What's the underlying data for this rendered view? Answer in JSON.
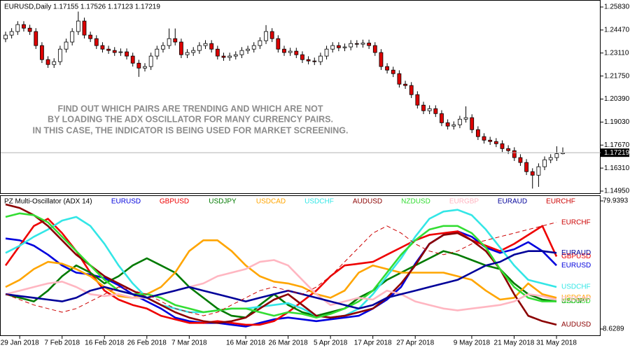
{
  "chart_data": [
    {
      "type": "candlestick",
      "title": "EURUSD,Daily  1.17155 1.17526 1.17123 1.17219",
      "annotation": [
        "FIND OUT WHICH PAIRS ARE TRENDING AND WHICH ARE NOT",
        "BY LOADING THE ADX OSCILLATOR FOR MANY CURRENCY PAIRS.",
        "IN THIS CASE, THE INDICATOR IS BEING USED FOR MARKET SCREENING."
      ],
      "open": [
        1.2395,
        1.2417,
        1.2438,
        1.2479,
        1.2458,
        1.2438,
        1.2355,
        1.2272,
        1.2243,
        1.226,
        1.2334,
        1.2376,
        1.2438,
        1.25,
        1.2417,
        1.2396,
        1.2355,
        1.2334,
        1.2326,
        1.2314,
        1.2318,
        1.2293,
        1.2251,
        1.2222,
        1.2231,
        1.2293,
        1.2334,
        1.2355,
        1.2396,
        1.2376,
        1.2301,
        1.2314,
        1.2326,
        1.2355,
        1.2367,
        1.2334,
        1.2293,
        1.2285,
        1.2293,
        1.2301,
        1.2326,
        1.2334,
        1.2355,
        1.2384,
        1.2438,
        1.2396,
        1.2334,
        1.2314,
        1.2322,
        1.2301,
        1.2272,
        1.2264,
        1.226,
        1.2293,
        1.2334,
        1.2355,
        1.2342,
        1.2347,
        1.2367,
        1.2363,
        1.237,
        1.2355,
        1.2314,
        1.2231,
        1.221,
        1.2189,
        1.2127,
        1.2119,
        1.2065,
        1.2003,
        1.197,
        1.1982,
        1.1953,
        1.1899,
        1.1879,
        1.1887,
        1.192,
        1.1929,
        1.1858,
        1.1817,
        1.1796,
        1.1788,
        1.1775,
        1.1746,
        1.1734,
        1.1693,
        1.1664,
        1.161,
        1.1589,
        1.1639,
        1.168,
        1.1693,
        1.1716
      ],
      "high": [
        1.2437,
        1.2458,
        1.2499,
        1.2499,
        1.2478,
        1.2458,
        1.2375,
        1.2292,
        1.228,
        1.2354,
        1.2396,
        1.2458,
        1.2556,
        1.252,
        1.2437,
        1.2416,
        1.2375,
        1.2354,
        1.2346,
        1.2338,
        1.2338,
        1.2313,
        1.2271,
        1.2251,
        1.2313,
        1.2354,
        1.2375,
        1.2456,
        1.2456,
        1.2396,
        1.2334,
        1.2346,
        1.2375,
        1.2387,
        1.2387,
        1.2354,
        1.2313,
        1.2313,
        1.2321,
        1.2346,
        1.2354,
        1.2375,
        1.2404,
        1.2476,
        1.2458,
        1.2416,
        1.2354,
        1.2342,
        1.2342,
        1.2321,
        1.2292,
        1.2284,
        1.2313,
        1.2354,
        1.2375,
        1.2375,
        1.2367,
        1.2387,
        1.2387,
        1.239,
        1.239,
        1.2375,
        1.2334,
        1.2251,
        1.223,
        1.2209,
        1.2147,
        1.2139,
        1.2085,
        1.2023,
        1.2002,
        1.2002,
        1.1973,
        1.1919,
        1.1907,
        1.194,
        1.1996,
        1.1949,
        1.1878,
        1.1837,
        1.1816,
        1.1808,
        1.1795,
        1.1766,
        1.1754,
        1.1713,
        1.1684,
        1.163,
        1.1659,
        1.17,
        1.1713,
        1.176,
        1.1753
      ],
      "low": [
        1.2375,
        1.2397,
        1.2418,
        1.2438,
        1.2418,
        1.2335,
        1.2252,
        1.2223,
        1.2223,
        1.224,
        1.2314,
        1.2356,
        1.2418,
        1.2397,
        1.2376,
        1.2335,
        1.2314,
        1.2306,
        1.2294,
        1.2294,
        1.2273,
        1.2231,
        1.217,
        1.2202,
        1.2211,
        1.2273,
        1.2314,
        1.2335,
        1.2356,
        1.2281,
        1.2281,
        1.2294,
        1.2306,
        1.2335,
        1.2314,
        1.2273,
        1.2265,
        1.2265,
        1.2273,
        1.2281,
        1.2306,
        1.2314,
        1.2335,
        1.2364,
        1.2376,
        1.2314,
        1.2294,
        1.2294,
        1.2281,
        1.2252,
        1.2244,
        1.224,
        1.224,
        1.2273,
        1.2314,
        1.2322,
        1.2322,
        1.2327,
        1.2343,
        1.2343,
        1.2335,
        1.2294,
        1.2211,
        1.219,
        1.2169,
        1.2107,
        1.2099,
        1.2045,
        1.1983,
        1.195,
        1.195,
        1.1933,
        1.1879,
        1.1859,
        1.1859,
        1.1867,
        1.19,
        1.1838,
        1.1797,
        1.1776,
        1.1768,
        1.1755,
        1.1726,
        1.1714,
        1.1673,
        1.1644,
        1.159,
        1.151,
        1.152,
        1.1619,
        1.166,
        1.1673,
        1.1712
      ],
      "close": [
        1.2417,
        1.2438,
        1.2479,
        1.2458,
        1.2438,
        1.2355,
        1.2272,
        1.2243,
        1.226,
        1.2334,
        1.2376,
        1.2438,
        1.25,
        1.2417,
        1.2396,
        1.2355,
        1.2334,
        1.2326,
        1.2314,
        1.2318,
        1.2293,
        1.2251,
        1.2222,
        1.2231,
        1.2293,
        1.2334,
        1.2355,
        1.2396,
        1.2376,
        1.2301,
        1.2314,
        1.2326,
        1.2355,
        1.2367,
        1.2334,
        1.2293,
        1.2285,
        1.2293,
        1.2301,
        1.2326,
        1.2334,
        1.2355,
        1.2384,
        1.2438,
        1.2396,
        1.2334,
        1.2314,
        1.2322,
        1.2301,
        1.2272,
        1.2264,
        1.226,
        1.2293,
        1.2334,
        1.2355,
        1.2342,
        1.2347,
        1.2367,
        1.2363,
        1.237,
        1.2355,
        1.2314,
        1.2231,
        1.221,
        1.2189,
        1.2127,
        1.2119,
        1.2065,
        1.2003,
        1.197,
        1.1982,
        1.1953,
        1.1899,
        1.1879,
        1.1887,
        1.192,
        1.1929,
        1.1858,
        1.1817,
        1.1796,
        1.1788,
        1.1775,
        1.1746,
        1.1734,
        1.1693,
        1.1664,
        1.161,
        1.1589,
        1.1639,
        1.168,
        1.1693,
        1.1716,
        1.1722
      ],
      "up_color": "#ffffff",
      "down_color": "#dd0000",
      "last_price": 1.17219,
      "ylim": [
        1.1495,
        1.2583
      ],
      "yticks": [
        {
          "value": 1.1495,
          "label": "1.14950"
        },
        {
          "value": 1.1631,
          "label": "1.16310"
        },
        {
          "value": 1.1767,
          "label": "1.17670"
        },
        {
          "value": 1.1903,
          "label": "1.19030"
        },
        {
          "value": 1.2039,
          "label": "1.20390"
        },
        {
          "value": 1.2175,
          "label": "1.21750"
        },
        {
          "value": 1.2311,
          "label": "1.23110"
        },
        {
          "value": 1.2447,
          "label": "1.24470"
        },
        {
          "value": 1.2583,
          "label": "1.25830"
        }
      ]
    },
    {
      "type": "line",
      "title": "PZ Multi-Oscillator (ADX 14)",
      "categories": [
        null,
        "29 Jan 2018",
        null,
        null,
        "7 Feb 2018",
        null,
        null,
        "16 Feb 2018",
        null,
        null,
        "26 Feb 2018",
        null,
        null,
        "7 Mar 2018",
        null,
        null,
        null,
        "16 Mar 2018",
        null,
        null,
        "26 Mar 2018",
        null,
        null,
        "5 Apr 2018",
        null,
        null,
        "17 Apr 2018",
        null,
        null,
        "27 Apr 2018",
        null,
        null,
        null,
        "9 May 2018",
        null,
        null,
        "21 May 2018",
        null,
        null,
        "31 May 2018"
      ],
      "series": [
        {
          "name": "EURUSD",
          "color": "#0000dd",
          "values": [
            59,
            58,
            55,
            50,
            44,
            40,
            39,
            37,
            33,
            28,
            24,
            20,
            15,
            13,
            12,
            12,
            11,
            10,
            12,
            14,
            15,
            14,
            13,
            14,
            15,
            16,
            20,
            25,
            32,
            45,
            56,
            61,
            63,
            60,
            54,
            51,
            53,
            57,
            52,
            44
          ]
        },
        {
          "name": "GBPUSD",
          "color": "#ee0000",
          "values": [
            44,
            55,
            66,
            70,
            62,
            52,
            40,
            30,
            25,
            22,
            20,
            16,
            14,
            12,
            12,
            13,
            12,
            11,
            11,
            13,
            18,
            24,
            30,
            38,
            44,
            45,
            46,
            50,
            54,
            58,
            61,
            62,
            63,
            58,
            55,
            52,
            56,
            61,
            66,
            49
          ]
        },
        {
          "name": "USDJPY",
          "color": "#007a00",
          "values": [
            28,
            26,
            24,
            30,
            38,
            44,
            40,
            34,
            38,
            44,
            48,
            44,
            40,
            32,
            26,
            20,
            16,
            15,
            22,
            28,
            22,
            18,
            16,
            18,
            20,
            26,
            30,
            36,
            40,
            44,
            48,
            52,
            50,
            47,
            44,
            42,
            34,
            28,
            25,
            24
          ]
        },
        {
          "name": "USDCAD",
          "color": "#ffa500",
          "values": [
            32,
            36,
            42,
            46,
            45,
            42,
            38,
            32,
            27,
            26,
            28,
            32,
            40,
            52,
            58,
            58,
            52,
            44,
            38,
            35,
            34,
            32,
            28,
            26,
            30,
            40,
            44,
            42,
            40,
            40,
            40,
            40,
            38,
            36,
            30,
            25,
            26,
            34,
            28,
            26
          ]
        },
        {
          "name": "USDCHF",
          "color": "#33e6e6",
          "values": [
            51,
            55,
            60,
            64,
            69,
            71,
            66,
            56,
            44,
            34,
            26,
            22,
            20,
            18,
            18,
            19,
            20,
            20,
            21,
            22,
            23,
            20,
            16,
            15,
            16,
            20,
            28,
            38,
            48,
            60,
            70,
            74,
            75,
            72,
            64,
            54,
            44,
            36,
            34,
            32
          ]
        },
        {
          "name": "AUDUSD",
          "color": "#8b0000",
          "values": [
            78,
            76,
            72,
            66,
            58,
            50,
            44,
            38,
            34,
            30,
            26,
            22,
            18,
            15,
            13,
            12,
            13,
            15,
            20,
            25,
            28,
            22,
            16,
            15,
            16,
            18,
            20,
            26,
            34,
            44,
            56,
            61,
            62,
            58,
            52,
            42,
            28,
            16,
            13,
            11
          ]
        },
        {
          "name": "NZDUSD",
          "color": "#33dd33",
          "values": [
            71,
            73,
            72,
            68,
            60,
            52,
            44,
            36,
            30,
            28,
            28,
            26,
            22,
            20,
            18,
            19,
            20,
            20,
            18,
            16,
            18,
            17,
            15,
            17,
            20,
            24,
            30,
            40,
            50,
            58,
            64,
            66,
            66,
            62,
            54,
            42,
            32,
            26,
            24,
            24
          ]
        },
        {
          "name": "EURGBP",
          "color": "#ffb6c1",
          "values": [
            28,
            30,
            32,
            34,
            35,
            32,
            28,
            27,
            28,
            26,
            26,
            28,
            30,
            32,
            34,
            38,
            40,
            42,
            46,
            47,
            44,
            36,
            28,
            22,
            24,
            26,
            25,
            30,
            28,
            24,
            22,
            20,
            19,
            20,
            21,
            22,
            24,
            28,
            27,
            25
          ]
        },
        {
          "name": "EURAUD",
          "color": "#000099",
          "values": [
            28,
            27,
            26,
            25,
            24,
            26,
            30,
            32,
            30,
            28,
            26,
            28,
            30,
            32,
            30,
            28,
            26,
            24,
            26,
            28,
            30,
            28,
            26,
            24,
            22,
            20,
            22,
            26,
            28,
            30,
            32,
            34,
            36,
            40,
            44,
            46,
            50,
            52,
            52,
            51
          ]
        },
        {
          "name": "EURCHF",
          "color": "#cc0000",
          "line_style": "dashed",
          "values": [
            28,
            25,
            22,
            20,
            18,
            20,
            24,
            28,
            32,
            30,
            28,
            24,
            20,
            18,
            16,
            18,
            22,
            26,
            30,
            32,
            30,
            28,
            32,
            38,
            46,
            54,
            62,
            66,
            62,
            56,
            52,
            50,
            52,
            56,
            58,
            60,
            62,
            64,
            66,
            68
          ]
        }
      ],
      "ylim": [
        8.6289,
        79.9393
      ],
      "yticks": [
        8.6289,
        79.9393
      ]
    }
  ]
}
